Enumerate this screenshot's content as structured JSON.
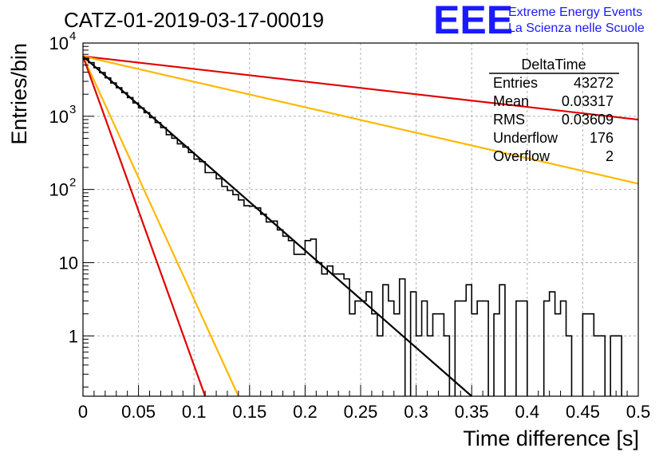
{
  "title": "CATZ-01-2019-03-17-00019",
  "logo": {
    "mark": "EEE",
    "line1": "Extreme Energy Events",
    "line2": "La Scienza nelle Scuole",
    "color": "#1a1aff"
  },
  "stats_box": {
    "name": "DeltaTime",
    "rows": [
      {
        "label": "Entries",
        "value": "43272"
      },
      {
        "label": "Mean",
        "value": "0.03317"
      },
      {
        "label": "RMS",
        "value": "0.03609"
      },
      {
        "label": "Underflow",
        "value": "176"
      },
      {
        "label": "Overflow",
        "value": "2"
      }
    ]
  },
  "colors": {
    "histogram": "#000000",
    "red": "#e00000",
    "orange": "#ffb800",
    "fit": "#000000"
  },
  "chart_data": {
    "type": "histogram",
    "title": "CATZ-01-2019-03-17-00019",
    "xlabel": "Time difference [s]",
    "ylabel": "Entries/bin",
    "xlim": [
      0,
      0.5
    ],
    "ylim": [
      0.15,
      10000
    ],
    "yscale": "log",
    "grid": true,
    "x_ticks": [
      "0",
      "0.05",
      "0.1",
      "0.15",
      "0.2",
      "0.25",
      "0.3",
      "0.35",
      "0.4",
      "0.45",
      "0.5"
    ],
    "x_tick_values": [
      0,
      0.05,
      0.1,
      0.15,
      0.2,
      0.25,
      0.3,
      0.35,
      0.4,
      0.45,
      0.5
    ],
    "y_ticks": [
      {
        "value": 1,
        "base": "1",
        "exp": ""
      },
      {
        "value": 10,
        "base": "10",
        "exp": ""
      },
      {
        "value": 100,
        "base": "10",
        "exp": "2"
      },
      {
        "value": 1000,
        "base": "10",
        "exp": "3"
      },
      {
        "value": 10000,
        "base": "10",
        "exp": "4"
      }
    ],
    "bin_width": 0.005,
    "bin_contents": [
      6200,
      5400,
      4600,
      3950,
      3350,
      2850,
      2450,
      2100,
      1800,
      1520,
      1300,
      1120,
      960,
      820,
      700,
      560,
      500,
      420,
      380,
      320,
      260,
      240,
      170,
      170,
      140,
      110,
      97,
      85,
      72,
      60,
      59,
      56,
      46,
      36,
      37,
      28,
      23,
      20,
      13,
      13,
      20,
      21,
      10,
      7,
      9,
      7,
      7,
      6,
      2,
      3,
      3,
      4,
      2,
      1,
      5,
      3,
      2,
      6,
      0,
      4,
      1,
      3,
      1,
      2,
      2,
      1,
      0,
      3,
      3,
      5,
      2,
      3,
      3,
      0,
      2,
      5,
      0,
      0,
      3,
      3,
      0,
      0,
      0,
      3,
      4,
      2,
      3,
      1,
      0,
      0,
      2,
      2,
      1,
      1,
      0,
      1,
      1,
      0,
      0,
      0
    ],
    "lines": [
      {
        "color": "#e00000",
        "x": [
          0,
          0.5
        ],
        "y": [
          6600,
          900
        ]
      },
      {
        "color": "#ffb800",
        "x": [
          0,
          0.5
        ],
        "y": [
          6600,
          120
        ]
      },
      {
        "color": "#000000",
        "x": [
          0,
          0.35
        ],
        "y": [
          6600,
          0.15
        ]
      },
      {
        "color": "#ffb800",
        "x": [
          0,
          0.14
        ],
        "y": [
          6600,
          0.15
        ]
      },
      {
        "color": "#e00000",
        "x": [
          0,
          0.11
        ],
        "y": [
          6600,
          0.15
        ]
      }
    ]
  }
}
